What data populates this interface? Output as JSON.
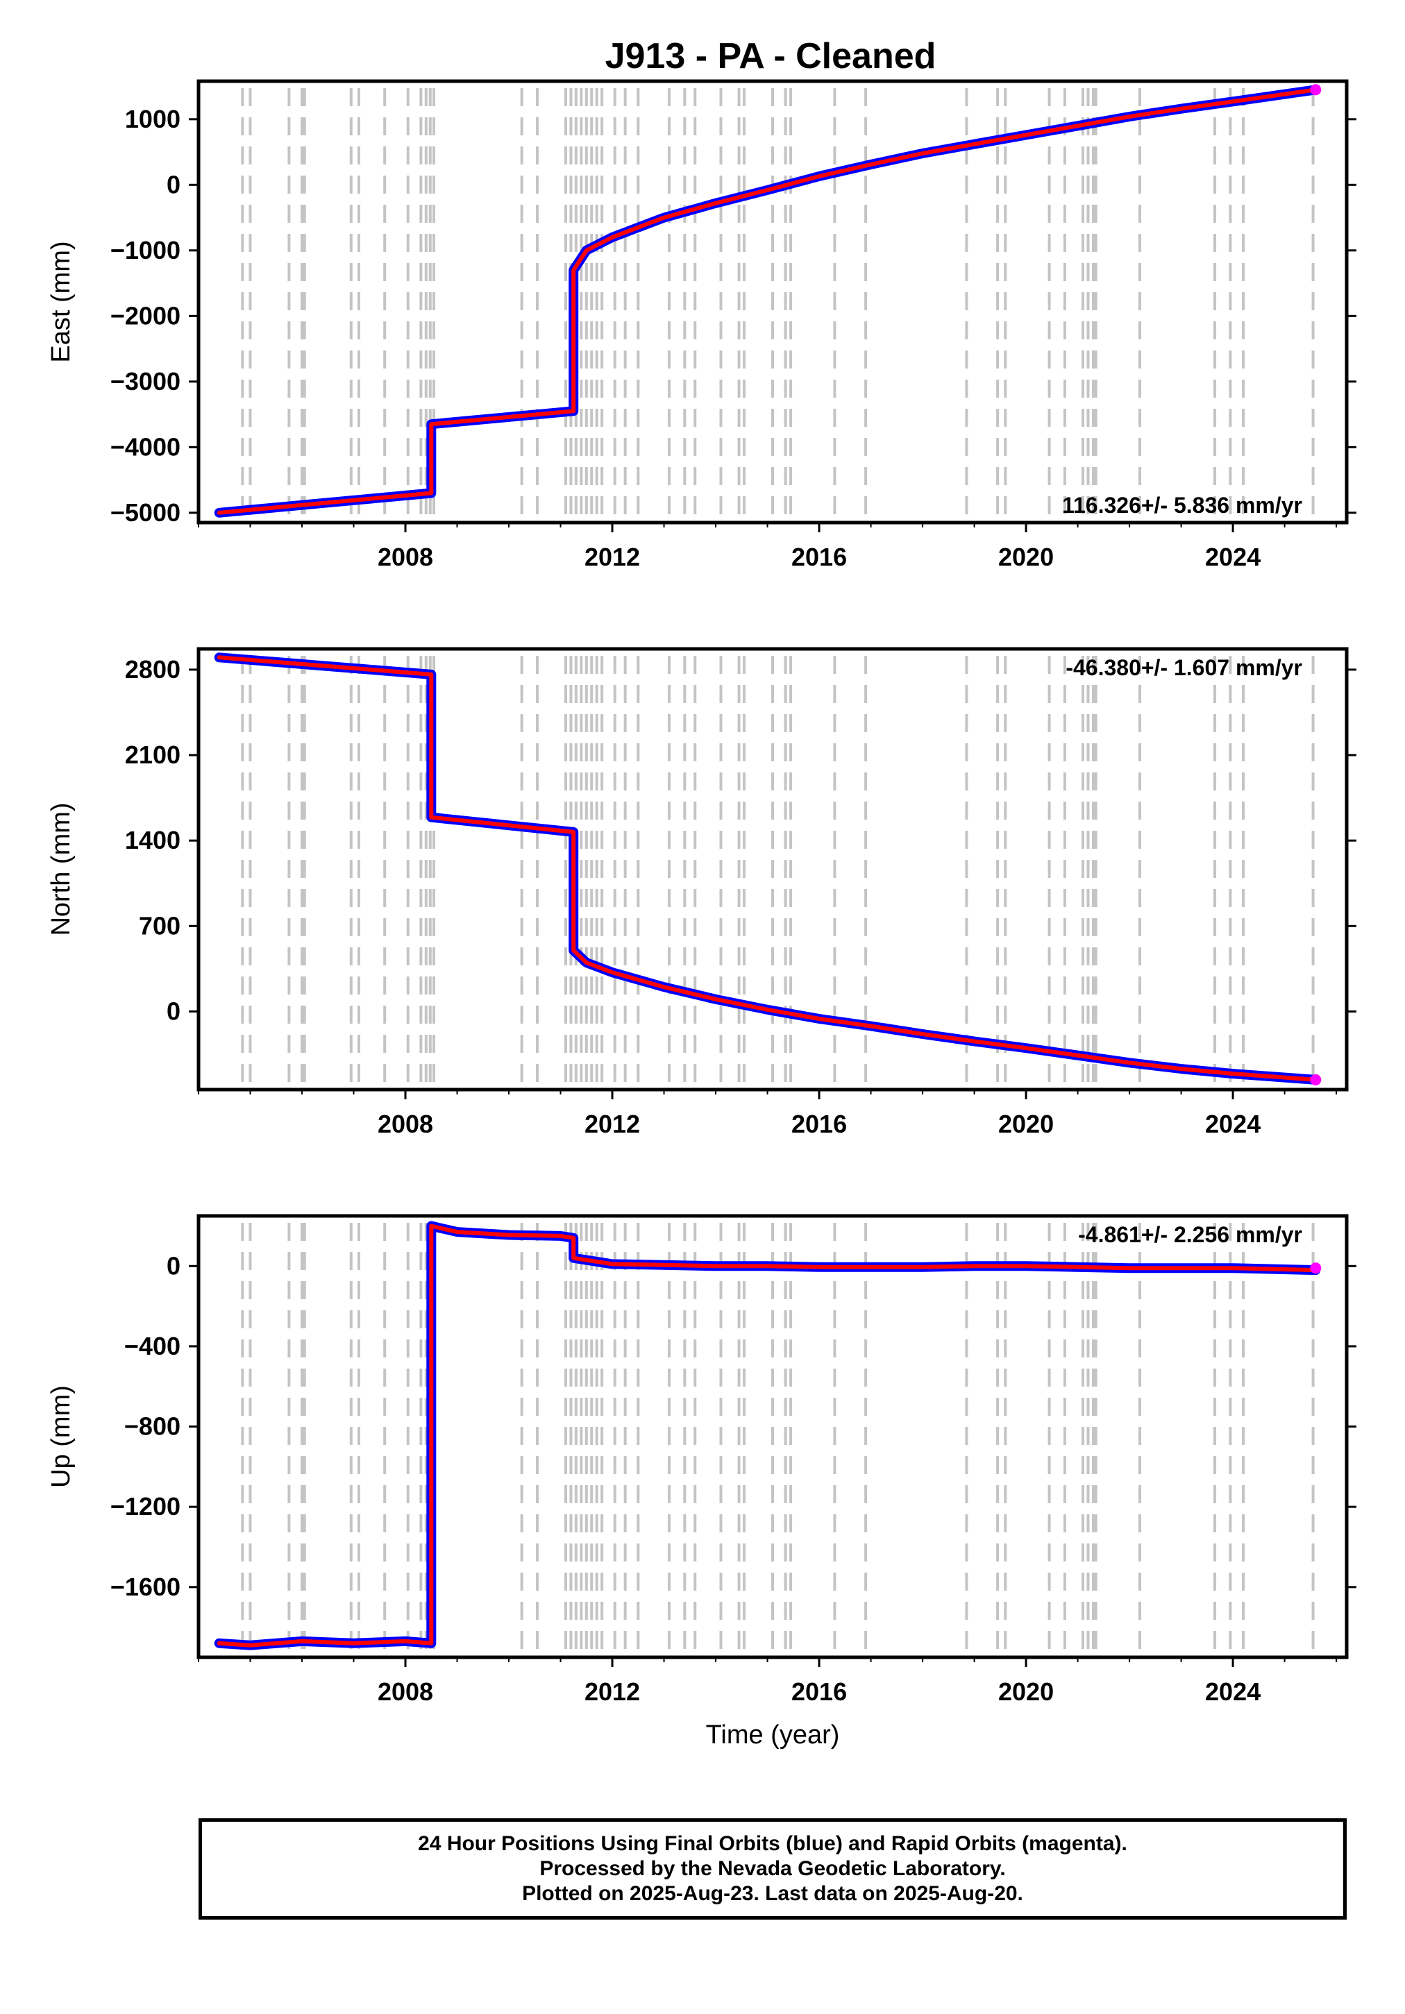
{
  "title": "J913  - PA - Cleaned",
  "chart_data": [
    {
      "type": "line",
      "name": "east",
      "ylabel": "East (mm)",
      "xlabel": "",
      "xlim": [
        2004.0,
        2026.2
      ],
      "ylim": [
        -5150,
        1580
      ],
      "yticks": [
        1000,
        0,
        -1000,
        -2000,
        -3000,
        -4000,
        -5000
      ],
      "ytick_labels": [
        "1000",
        "0",
        "−1000",
        "−2000",
        "−3000",
        "−4000",
        "−5000"
      ],
      "xticks": [
        2008,
        2012,
        2016,
        2020,
        2024
      ],
      "xtick_labels": [
        "2008",
        "2012",
        "2016",
        "2020",
        "2024"
      ],
      "rate_label": "116.326+/- 5.836 mm/yr",
      "rate_position": "bottom-right",
      "series": [
        {
          "label": "Final Orbits",
          "color": "#0000ff",
          "points": [
            [
              2004.4,
              -5000
            ],
            [
              2008.5,
              -4700
            ],
            [
              2008.5,
              -3650
            ],
            [
              2011.25,
              -3450
            ],
            [
              2011.25,
              -1300
            ],
            [
              2011.5,
              -1000
            ],
            [
              2012,
              -800
            ],
            [
              2013,
              -500
            ],
            [
              2014,
              -280
            ],
            [
              2015,
              -80
            ],
            [
              2016,
              130
            ],
            [
              2017,
              310
            ],
            [
              2018,
              480
            ],
            [
              2019,
              620
            ],
            [
              2020,
              760
            ],
            [
              2021,
              900
            ],
            [
              2022,
              1040
            ],
            [
              2023,
              1160
            ],
            [
              2024,
              1270
            ],
            [
              2025.6,
              1450
            ]
          ]
        }
      ],
      "markers": [
        {
          "label": "Rapid Orbits",
          "color": "#ff00ff",
          "x": 2025.6,
          "y": 1450
        }
      ]
    },
    {
      "type": "line",
      "name": "north",
      "ylabel": "North (mm)",
      "xlabel": "",
      "xlim": [
        2004.0,
        2026.2
      ],
      "ylim": [
        -640,
        2970
      ],
      "yticks": [
        2800,
        2100,
        1400,
        700,
        0
      ],
      "ytick_labels": [
        "2800",
        "2100",
        "1400",
        "700",
        "0"
      ],
      "xticks": [
        2008,
        2012,
        2016,
        2020,
        2024
      ],
      "xtick_labels": [
        "2008",
        "2012",
        "2016",
        "2020",
        "2024"
      ],
      "rate_label": "-46.380+/- 1.607 mm/yr",
      "rate_position": "top-right",
      "series": [
        {
          "label": "Final Orbits",
          "color": "#0000ff",
          "points": [
            [
              2004.4,
              2900
            ],
            [
              2008.5,
              2760
            ],
            [
              2008.5,
              1590
            ],
            [
              2011.25,
              1470
            ],
            [
              2011.25,
              500
            ],
            [
              2011.5,
              400
            ],
            [
              2012,
              320
            ],
            [
              2013,
              200
            ],
            [
              2014,
              100
            ],
            [
              2015,
              15
            ],
            [
              2016,
              -60
            ],
            [
              2017,
              -120
            ],
            [
              2018,
              -185
            ],
            [
              2019,
              -245
            ],
            [
              2020,
              -300
            ],
            [
              2021,
              -360
            ],
            [
              2022,
              -420
            ],
            [
              2023,
              -470
            ],
            [
              2024,
              -510
            ],
            [
              2025.6,
              -560
            ]
          ]
        }
      ],
      "markers": [
        {
          "label": "Rapid Orbits",
          "color": "#ff00ff",
          "x": 2025.6,
          "y": -560
        }
      ]
    },
    {
      "type": "line",
      "name": "up",
      "ylabel": "Up (mm)",
      "xlabel": "Time (year)",
      "xlim": [
        2004.0,
        2026.2
      ],
      "ylim": [
        -1950,
        250
      ],
      "yticks": [
        0,
        -400,
        -800,
        -1200,
        -1600
      ],
      "ytick_labels": [
        "0",
        "−400",
        "−800",
        "−1200",
        "−1600"
      ],
      "xticks": [
        2008,
        2012,
        2016,
        2020,
        2024
      ],
      "xtick_labels": [
        "2008",
        "2012",
        "2016",
        "2020",
        "2024"
      ],
      "rate_label": "-4.861+/- 2.256 mm/yr",
      "rate_position": "top-right",
      "series": [
        {
          "label": "Final Orbits",
          "color": "#0000ff",
          "points": [
            [
              2004.4,
              -1880
            ],
            [
              2005,
              -1890
            ],
            [
              2006,
              -1870
            ],
            [
              2007,
              -1880
            ],
            [
              2008,
              -1870
            ],
            [
              2008.5,
              -1880
            ],
            [
              2008.5,
              200
            ],
            [
              2009,
              170
            ],
            [
              2010,
              155
            ],
            [
              2011,
              150
            ],
            [
              2011.25,
              140
            ],
            [
              2011.25,
              40
            ],
            [
              2012,
              10
            ],
            [
              2013,
              5
            ],
            [
              2014,
              0
            ],
            [
              2015,
              0
            ],
            [
              2016,
              -5
            ],
            [
              2017,
              -5
            ],
            [
              2018,
              -5
            ],
            [
              2019,
              0
            ],
            [
              2020,
              0
            ],
            [
              2021,
              -5
            ],
            [
              2022,
              -10
            ],
            [
              2023,
              -10
            ],
            [
              2024,
              -10
            ],
            [
              2025.6,
              -20
            ]
          ]
        }
      ],
      "markers": [
        {
          "label": "Rapid Orbits",
          "color": "#ff00ff",
          "x": 2025.6,
          "y": -10
        }
      ]
    }
  ],
  "event_lines": [
    2004.85,
    2005.0,
    2005.75,
    2006.0,
    2006.05,
    2006.95,
    2007.1,
    2007.6,
    2008.05,
    2008.3,
    2008.4,
    2008.48,
    2008.55,
    2010.25,
    2010.55,
    2011.1,
    2011.2,
    2011.3,
    2011.4,
    2011.5,
    2011.6,
    2011.7,
    2011.8,
    2012.05,
    2012.25,
    2012.5,
    2013.1,
    2013.4,
    2013.6,
    2014.1,
    2014.45,
    2014.55,
    2015.1,
    2015.35,
    2015.45,
    2016.3,
    2016.9,
    2018.85,
    2019.45,
    2019.6,
    2020.45,
    2020.75,
    2021.1,
    2021.2,
    2021.3,
    2021.35,
    2022.2,
    2023.65,
    2023.95,
    2024.2,
    2025.55
  ],
  "colors": {
    "final_orbits": "#0000ff",
    "rapid_orbits": "#ff00ff",
    "model": "#ff0000",
    "event_lines": "#c4c4c4"
  },
  "footer": {
    "line1": "24 Hour Positions Using Final Orbits (blue) and Rapid Orbits (magenta).",
    "line2": "Processed by the Nevada Geodetic Laboratory.",
    "line3": "Plotted on 2025-Aug-23. Last data on 2025-Aug-20."
  }
}
